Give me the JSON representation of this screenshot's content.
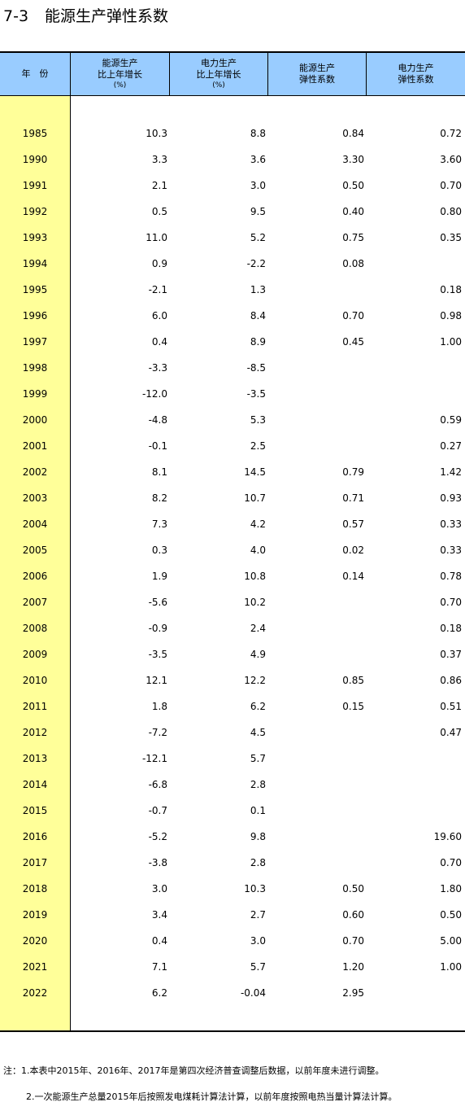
{
  "table": {
    "number": "7-3",
    "title": "能源生产弹性系数",
    "headers": {
      "year": "年　份",
      "energy_growth": [
        "能源生产",
        "比上年增长",
        "(%)"
      ],
      "power_growth": [
        "电力生产",
        "比上年增长",
        "(%)"
      ],
      "energy_elasticity": [
        "能源生产",
        "弹性系数"
      ],
      "power_elasticity": [
        "电力生产",
        "弹性系数"
      ]
    },
    "rows": [
      {
        "year": "1985",
        "energy_growth": "10.3",
        "power_growth": "8.8",
        "energy_elasticity": "0.84",
        "power_elasticity": "0.72"
      },
      {
        "year": "1990",
        "energy_growth": "3.3",
        "power_growth": "3.6",
        "energy_elasticity": "3.30",
        "power_elasticity": "3.60"
      },
      {
        "year": "1991",
        "energy_growth": "2.1",
        "power_growth": "3.0",
        "energy_elasticity": "0.50",
        "power_elasticity": "0.70"
      },
      {
        "year": "1992",
        "energy_growth": "0.5",
        "power_growth": "9.5",
        "energy_elasticity": "0.40",
        "power_elasticity": "0.80"
      },
      {
        "year": "1993",
        "energy_growth": "11.0",
        "power_growth": "5.2",
        "energy_elasticity": "0.75",
        "power_elasticity": "0.35"
      },
      {
        "year": "1994",
        "energy_growth": "0.9",
        "power_growth": "-2.2",
        "energy_elasticity": "0.08",
        "power_elasticity": ""
      },
      {
        "year": "1995",
        "energy_growth": "-2.1",
        "power_growth": "1.3",
        "energy_elasticity": "",
        "power_elasticity": "0.18"
      },
      {
        "year": "1996",
        "energy_growth": "6.0",
        "power_growth": "8.4",
        "energy_elasticity": "0.70",
        "power_elasticity": "0.98"
      },
      {
        "year": "1997",
        "energy_growth": "0.4",
        "power_growth": "8.9",
        "energy_elasticity": "0.45",
        "power_elasticity": "1.00"
      },
      {
        "year": "1998",
        "energy_growth": "-3.3",
        "power_growth": "-8.5",
        "energy_elasticity": "",
        "power_elasticity": ""
      },
      {
        "year": "1999",
        "energy_growth": "-12.0",
        "power_growth": "-3.5",
        "energy_elasticity": "",
        "power_elasticity": ""
      },
      {
        "year": "2000",
        "energy_growth": "-4.8",
        "power_growth": "5.3",
        "energy_elasticity": "",
        "power_elasticity": "0.59"
      },
      {
        "year": "2001",
        "energy_growth": "-0.1",
        "power_growth": "2.5",
        "energy_elasticity": "",
        "power_elasticity": "0.27"
      },
      {
        "year": "2002",
        "energy_growth": "8.1",
        "power_growth": "14.5",
        "energy_elasticity": "0.79",
        "power_elasticity": "1.42"
      },
      {
        "year": "2003",
        "energy_growth": "8.2",
        "power_growth": "10.7",
        "energy_elasticity": "0.71",
        "power_elasticity": "0.93"
      },
      {
        "year": "2004",
        "energy_growth": "7.3",
        "power_growth": "4.2",
        "energy_elasticity": "0.57",
        "power_elasticity": "0.33"
      },
      {
        "year": "2005",
        "energy_growth": "0.3",
        "power_growth": "4.0",
        "energy_elasticity": "0.02",
        "power_elasticity": "0.33"
      },
      {
        "year": "2006",
        "energy_growth": "1.9",
        "power_growth": "10.8",
        "energy_elasticity": "0.14",
        "power_elasticity": "0.78"
      },
      {
        "year": "2007",
        "energy_growth": "-5.6",
        "power_growth": "10.2",
        "energy_elasticity": "",
        "power_elasticity": "0.70"
      },
      {
        "year": "2008",
        "energy_growth": "-0.9",
        "power_growth": "2.4",
        "energy_elasticity": "",
        "power_elasticity": "0.18"
      },
      {
        "year": "2009",
        "energy_growth": "-3.5",
        "power_growth": "4.9",
        "energy_elasticity": "",
        "power_elasticity": "0.37"
      },
      {
        "year": "2010",
        "energy_growth": "12.1",
        "power_growth": "12.2",
        "energy_elasticity": "0.85",
        "power_elasticity": "0.86"
      },
      {
        "year": "2011",
        "energy_growth": "1.8",
        "power_growth": "6.2",
        "energy_elasticity": "0.15",
        "power_elasticity": "0.51"
      },
      {
        "year": "2012",
        "energy_growth": "-7.2",
        "power_growth": "4.5",
        "energy_elasticity": "",
        "power_elasticity": "0.47"
      },
      {
        "year": "2013",
        "energy_growth": "-12.1",
        "power_growth": "5.7",
        "energy_elasticity": "",
        "power_elasticity": ""
      },
      {
        "year": "2014",
        "energy_growth": "-6.8",
        "power_growth": "2.8",
        "energy_elasticity": "",
        "power_elasticity": ""
      },
      {
        "year": "2015",
        "energy_growth": "-0.7",
        "power_growth": "0.1",
        "energy_elasticity": "",
        "power_elasticity": ""
      },
      {
        "year": "2016",
        "energy_growth": "-5.2",
        "power_growth": "9.8",
        "energy_elasticity": "",
        "power_elasticity": "19.60"
      },
      {
        "year": "2017",
        "energy_growth": "-3.8",
        "power_growth": "2.8",
        "energy_elasticity": "",
        "power_elasticity": "0.70"
      },
      {
        "year": "2018",
        "energy_growth": "3.0",
        "power_growth": "10.3",
        "energy_elasticity": "0.50",
        "power_elasticity": "1.80"
      },
      {
        "year": "2019",
        "energy_growth": "3.4",
        "power_growth": "2.7",
        "energy_elasticity": "0.60",
        "power_elasticity": "0.50"
      },
      {
        "year": "2020",
        "energy_growth": "0.4",
        "power_growth": "3.0",
        "energy_elasticity": "0.70",
        "power_elasticity": "5.00"
      },
      {
        "year": "2021",
        "energy_growth": "7.1",
        "power_growth": "5.7",
        "energy_elasticity": "1.20",
        "power_elasticity": "1.00"
      },
      {
        "year": "2022",
        "energy_growth": "6.2",
        "power_growth": "-0.04",
        "energy_elasticity": "2.95",
        "power_elasticity": ""
      }
    ],
    "notes": [
      "注：1.本表中2015年、2016年、2017年是第四次经济普查调整后数据，以前年度未进行调整。",
      "2.一次能源生产总量2015年后按照发电煤耗计算法计算，以前年度按照电热当量计算法计算。"
    ]
  },
  "colors": {
    "header_bg": "#99ccff",
    "year_col_bg": "#ffff99",
    "rule": "#000000"
  }
}
